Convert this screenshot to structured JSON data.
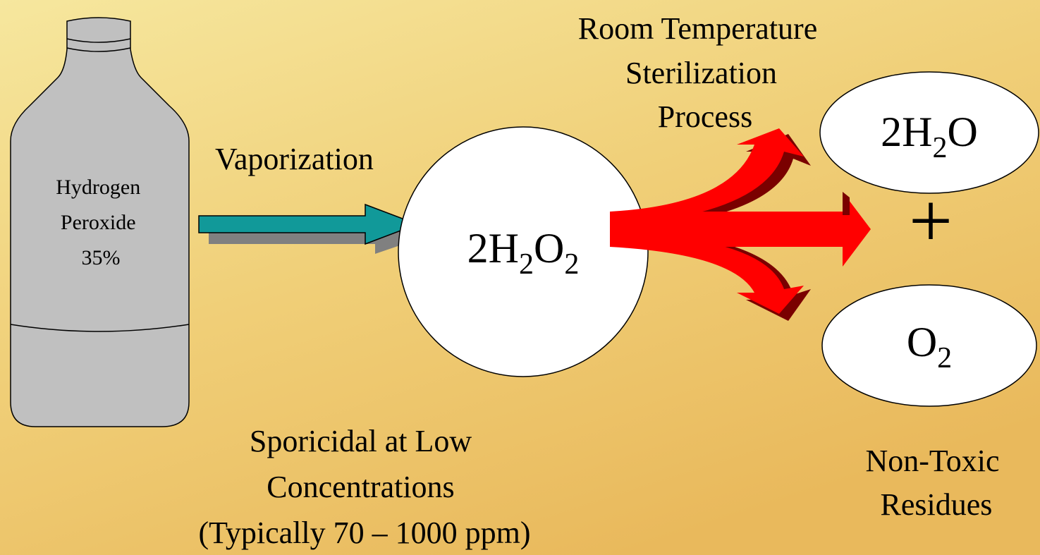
{
  "bottle": {
    "label_lines": [
      "Hydrogen",
      "Peroxide",
      "35%"
    ]
  },
  "step_label": "Vaporization",
  "process_label_lines": [
    "Room Temperature",
    "Sterilization",
    "Process"
  ],
  "reactant": {
    "parts": [
      "2H",
      "2",
      "O",
      "2"
    ]
  },
  "products": [
    {
      "parts": [
        "2H",
        "2",
        "O"
      ]
    },
    {
      "parts": [
        "O",
        "2"
      ]
    }
  ],
  "plus": "+",
  "left_note_lines": [
    "Sporicidal at Low",
    "Concentrations",
    "(Typically 70 – 1000 ppm)"
  ],
  "right_note_lines": [
    "Non-Toxic",
    "Residues"
  ]
}
